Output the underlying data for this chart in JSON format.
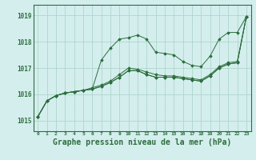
{
  "background_color": "#d4eeed",
  "grid_color": "#aed4cc",
  "line_color": "#2d6e3e",
  "marker_color": "#2d6e3e",
  "xlabel": "Graphe pression niveau de la mer (hPa)",
  "xlabel_fontsize": 7,
  "ylabel_ticks": [
    1015,
    1016,
    1017,
    1018,
    1019
  ],
  "xlim": [
    -0.5,
    23.5
  ],
  "ylim": [
    1014.6,
    1019.4
  ],
  "series": [
    [
      1015.15,
      1015.75,
      1015.95,
      1016.05,
      1016.1,
      1016.15,
      1016.2,
      1017.3,
      1017.75,
      1018.1,
      1018.15,
      1018.25,
      1018.1,
      1017.6,
      1017.55,
      1017.5,
      1017.25,
      1017.1,
      1017.05,
      1017.45,
      1018.1,
      1018.35,
      1018.35,
      1018.95
    ],
    [
      1015.15,
      1015.75,
      1015.95,
      1016.05,
      1016.1,
      1016.15,
      1016.2,
      1016.3,
      1016.45,
      1016.65,
      1016.9,
      1016.9,
      1016.75,
      1016.65,
      1016.65,
      1016.65,
      1016.6,
      1016.55,
      1016.5,
      1016.7,
      1017.0,
      1017.15,
      1017.2,
      1018.95
    ],
    [
      1015.15,
      1015.75,
      1015.95,
      1016.05,
      1016.1,
      1016.15,
      1016.2,
      1016.3,
      1016.45,
      1016.65,
      1016.9,
      1016.9,
      1016.75,
      1016.65,
      1016.65,
      1016.65,
      1016.6,
      1016.55,
      1016.5,
      1016.7,
      1017.0,
      1017.15,
      1017.2,
      1018.95
    ],
    [
      1015.15,
      1015.75,
      1015.95,
      1016.05,
      1016.1,
      1016.15,
      1016.25,
      1016.35,
      1016.5,
      1016.75,
      1017.0,
      1016.95,
      1016.85,
      1016.75,
      1016.7,
      1016.7,
      1016.65,
      1016.6,
      1016.55,
      1016.75,
      1017.05,
      1017.2,
      1017.25,
      1018.95
    ]
  ]
}
